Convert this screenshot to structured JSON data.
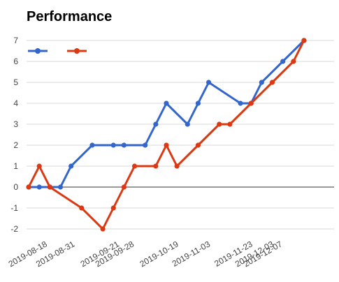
{
  "chart_data": {
    "type": "line",
    "title": "Performance",
    "xlabel": "",
    "ylabel": "",
    "ylim": [
      -2,
      7
    ],
    "yticks": [
      -2,
      -1,
      0,
      1,
      2,
      3,
      4,
      5,
      6,
      7
    ],
    "xlim": [
      "2019-08-08",
      "2019-12-10"
    ],
    "xtick_labels": [
      "2019-08-18",
      "2019-08-31",
      "2019-09-21",
      "2019-09-28",
      "2019-10-19",
      "2019-11-03",
      "2019-11-23",
      "2019-12-03",
      "2019-12-07"
    ],
    "grid": true,
    "legend_position": "top-left",
    "series": [
      {
        "color": "#3366cc",
        "points": [
          [
            "2019-08-09",
            0
          ],
          [
            "2019-08-14",
            0
          ],
          [
            "2019-08-19",
            0
          ],
          [
            "2019-08-24",
            0
          ],
          [
            "2019-08-29",
            1
          ],
          [
            "2019-09-08",
            2
          ],
          [
            "2019-09-18",
            2
          ],
          [
            "2019-09-23",
            2
          ],
          [
            "2019-10-03",
            2
          ],
          [
            "2019-10-08",
            3
          ],
          [
            "2019-10-13",
            4
          ],
          [
            "2019-10-23",
            3
          ],
          [
            "2019-10-28",
            4
          ],
          [
            "2019-11-02",
            5
          ],
          [
            "2019-11-17",
            4
          ],
          [
            "2019-11-22",
            4
          ],
          [
            "2019-11-27",
            5
          ],
          [
            "2019-12-07",
            6
          ],
          [
            "2019-12-17",
            7
          ]
        ]
      },
      {
        "color": "#dc3912",
        "points": [
          [
            "2019-08-09",
            0
          ],
          [
            "2019-08-14",
            1
          ],
          [
            "2019-08-19",
            0
          ],
          [
            "2019-09-03",
            -1
          ],
          [
            "2019-09-13",
            -2
          ],
          [
            "2019-09-18",
            -1
          ],
          [
            "2019-09-23",
            0
          ],
          [
            "2019-09-28",
            1
          ],
          [
            "2019-10-08",
            1
          ],
          [
            "2019-10-13",
            2
          ],
          [
            "2019-10-18",
            1
          ],
          [
            "2019-10-28",
            2
          ],
          [
            "2019-11-07",
            3
          ],
          [
            "2019-11-12",
            3
          ],
          [
            "2019-11-22",
            4
          ],
          [
            "2019-12-02",
            5
          ],
          [
            "2019-12-12",
            6
          ],
          [
            "2019-12-17",
            7
          ]
        ]
      }
    ]
  }
}
